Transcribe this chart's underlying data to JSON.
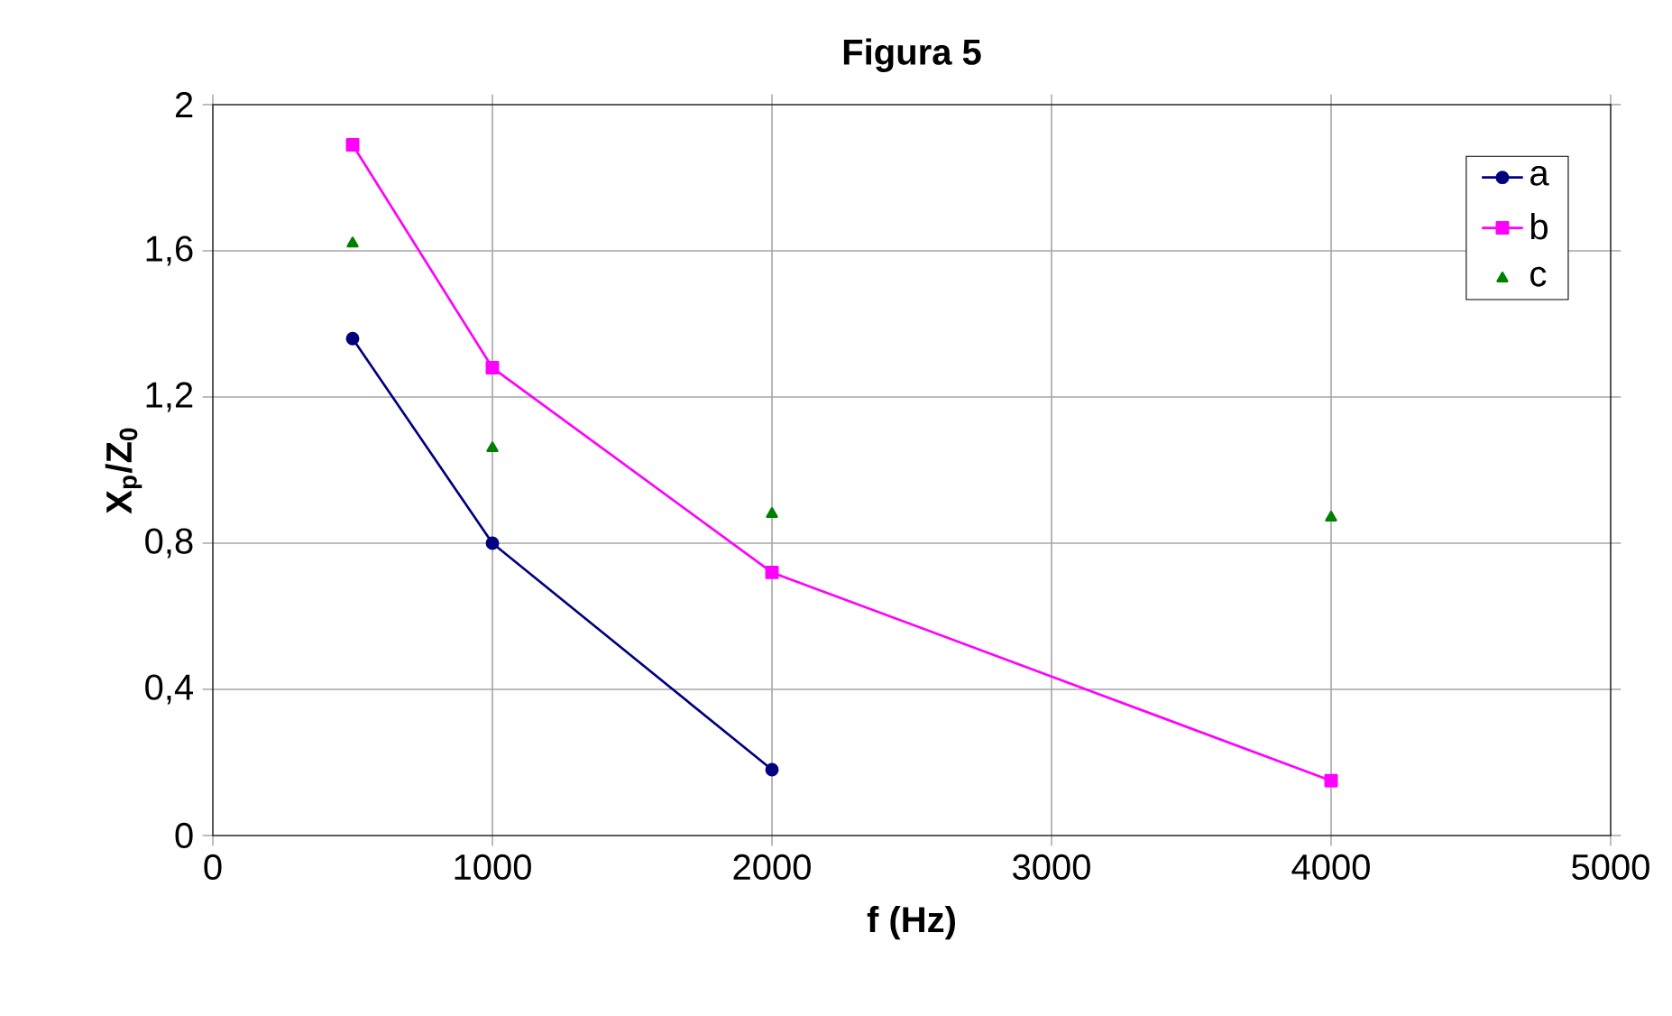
{
  "chart_data": {
    "type": "line",
    "title": "Figura 5",
    "xlabel": "f (Hz)",
    "ylabel": "X$_{p}$/Z$_{0}$",
    "xlim": [
      0,
      5000
    ],
    "xticks": [
      0,
      1000,
      2000,
      3000,
      4000,
      5000
    ],
    "ylim": [
      0,
      2
    ],
    "yticks": [
      0,
      {
        "value": 0.4,
        "label": "0,4"
      },
      {
        "value": 0.8,
        "label": "0,8"
      },
      {
        "value": 1.2,
        "label": "1,2"
      },
      {
        "value": 1.6,
        "label": "1,6"
      },
      2
    ],
    "grid": true,
    "legend": "top right",
    "series": [
      {
        "name": "a",
        "color": "#000080",
        "marker": "circle",
        "x": [
          500,
          1000,
          2000
        ],
        "values": [
          1.36,
          0.8,
          0.18
        ]
      },
      {
        "name": "b",
        "color": "#ff00ff",
        "marker": "square",
        "x": [
          500,
          1000,
          2000,
          4000
        ],
        "values": [
          1.89,
          1.28,
          0.72,
          0.15
        ]
      },
      {
        "name": "c",
        "color": "#008000",
        "type": "scatter",
        "marker": "triangle",
        "x": [
          500,
          1000,
          2000,
          4000
        ],
        "values": [
          1.62,
          1.06,
          0.88,
          0.87
        ]
      }
    ]
  }
}
